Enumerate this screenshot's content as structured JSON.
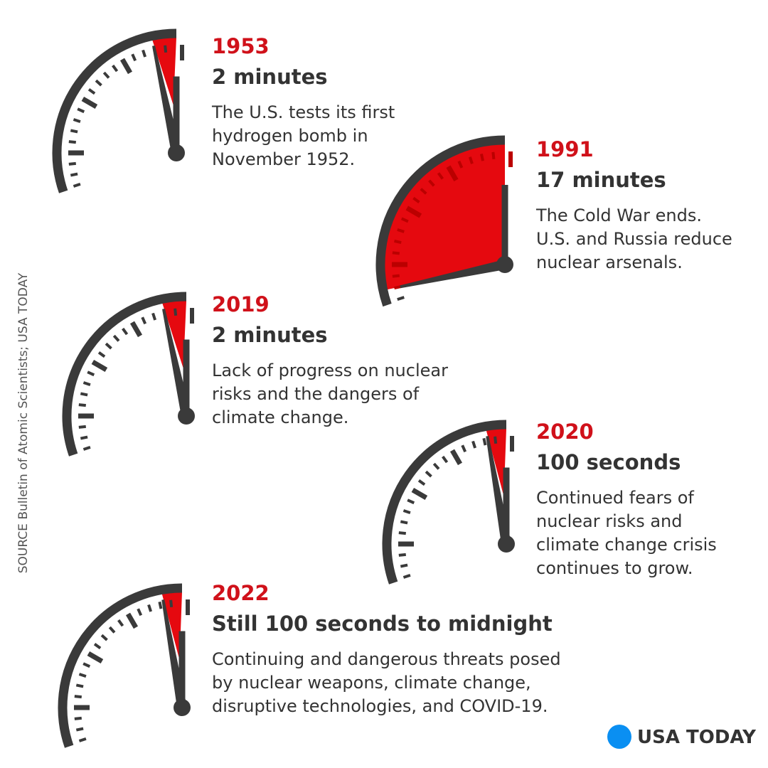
{
  "source": "SOURCE Bulletin of Atomic Scientists; USA TODAY",
  "logo": "USA TODAY",
  "entries": [
    {
      "year": "1953",
      "headline": "2 minutes",
      "lines": [
        "The U.S. tests its first",
        "hydrogen bomb in",
        "November 1952."
      ]
    },
    {
      "year": "1991",
      "headline": "17 minutes",
      "lines": [
        "The Cold War ends.",
        "U.S. and Russia reduce",
        "nuclear arsenals."
      ]
    },
    {
      "year": "2019",
      "headline": "2 minutes",
      "lines": [
        "Lack of progress on nuclear",
        "risks and the dangers of",
        "climate change."
      ]
    },
    {
      "year": "2020",
      "headline": "100 seconds",
      "lines": [
        "Continued fears of",
        "nuclear risks and",
        "climate change crisis",
        "continues to grow."
      ]
    },
    {
      "year": "2022",
      "headline": "Still 100 seconds to midnight",
      "lines": [
        "Continuing and dangerous threats posed",
        "by nuclear weapons, climate change,",
        "disruptive technologies, and COVID-19."
      ]
    }
  ]
}
